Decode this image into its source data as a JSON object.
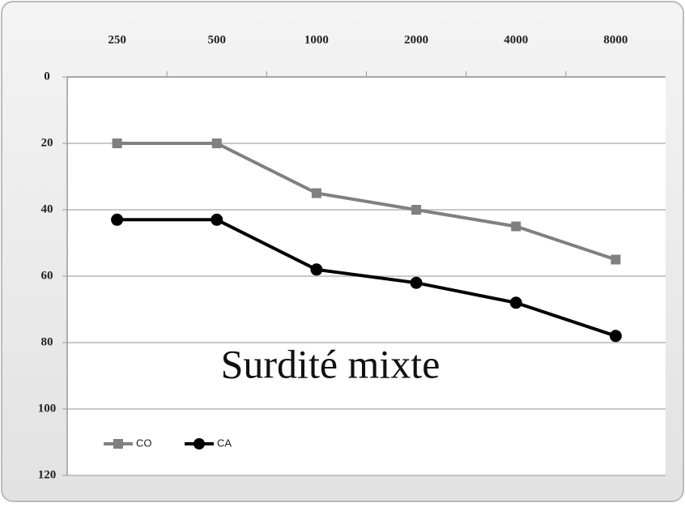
{
  "chart_data": {
    "type": "line",
    "annotation": "Surdité mixte",
    "categories": [
      "250",
      "500",
      "1000",
      "2000",
      "4000",
      "8000"
    ],
    "series": [
      {
        "name": "CO",
        "color": "#808080",
        "marker": "square",
        "values": [
          20,
          20,
          35,
          40,
          45,
          55
        ]
      },
      {
        "name": "CA",
        "color": "#000000",
        "marker": "circle",
        "values": [
          43,
          43,
          58,
          62,
          68,
          78
        ]
      }
    ],
    "ylim": [
      0,
      120
    ],
    "yticks": [
      0,
      20,
      40,
      60,
      80,
      100,
      120
    ],
    "y_inverted": true,
    "x_axis_position": "top",
    "grid": true,
    "legend": "lower left"
  }
}
